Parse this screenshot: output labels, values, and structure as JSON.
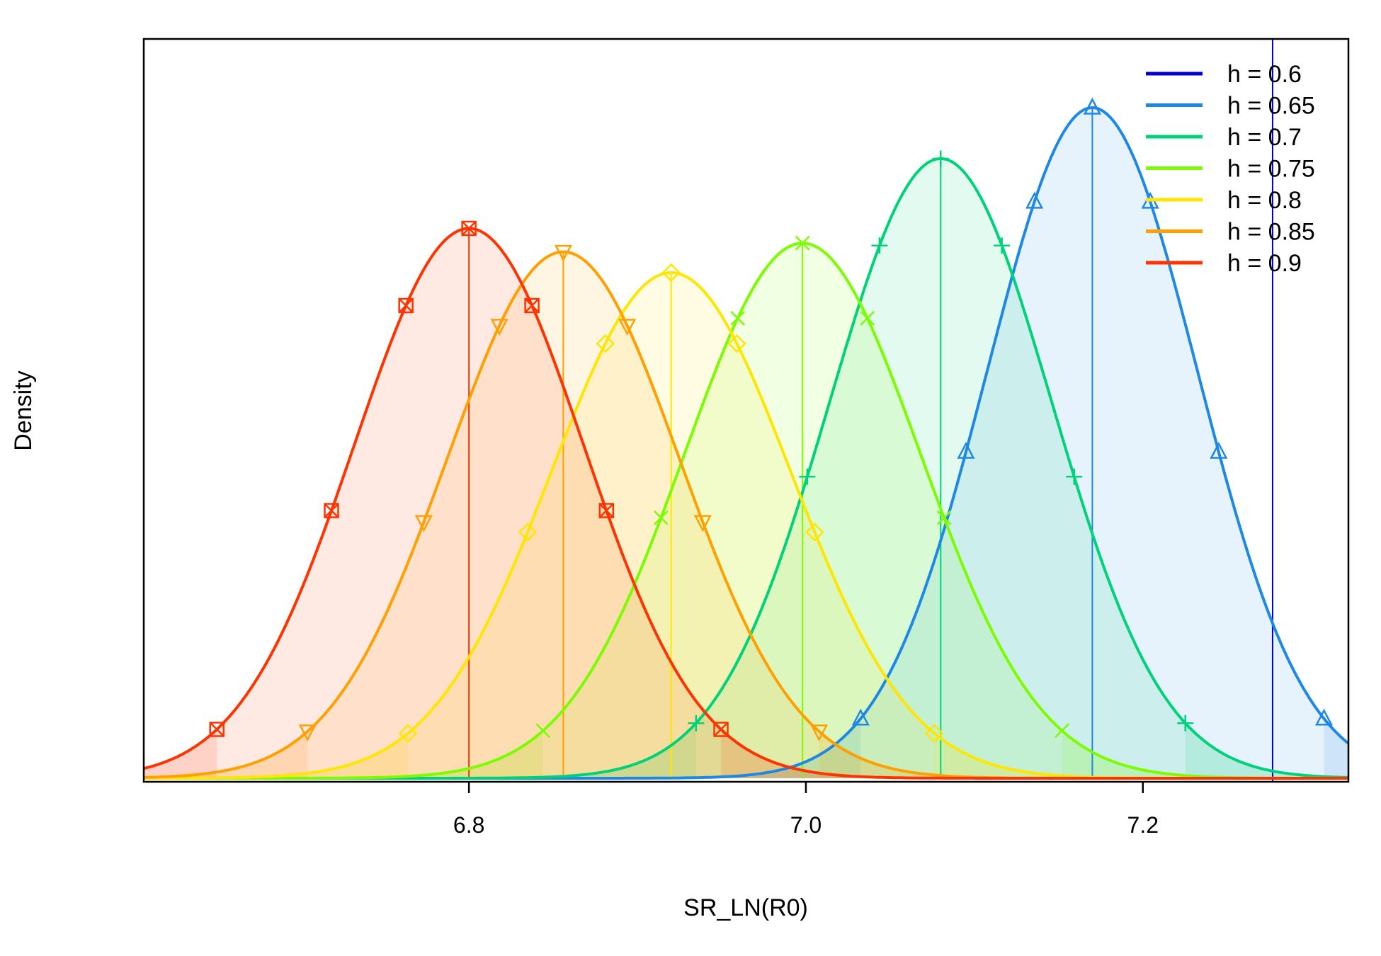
{
  "chart_data": {
    "type": "area",
    "xlabel": "SR_LN(R0)",
    "ylabel": "Density",
    "xlim": [
      6.607,
      7.322
    ],
    "x_ticks": [
      "6.8",
      "7.0",
      "7.2"
    ],
    "x_tick_values": [
      6.8,
      7.0,
      7.2
    ],
    "grid": false,
    "legend_position": "top-right",
    "series": [
      {
        "name": "h = 0.6",
        "color": "#0000CC",
        "type": "vline",
        "x": 7.277
      },
      {
        "name": "h = 0.65",
        "color": "#1E88E5",
        "mean": 7.17,
        "sd": 0.0625,
        "peak": 1.0,
        "marker": "triangle-up"
      },
      {
        "name": "h = 0.7",
        "color": "#00D27A",
        "mean": 7.08,
        "sd": 0.066,
        "peak": 0.924,
        "marker": "plus"
      },
      {
        "name": "h = 0.75",
        "color": "#7CFC00",
        "mean": 6.998,
        "sd": 0.07,
        "peak": 0.798,
        "marker": "cross"
      },
      {
        "name": "h = 0.8",
        "color": "#FFE600",
        "mean": 6.92,
        "sd": 0.071,
        "peak": 0.754,
        "marker": "diamond"
      },
      {
        "name": "h = 0.85",
        "color": "#FFA000",
        "mean": 6.856,
        "sd": 0.069,
        "peak": 0.785,
        "marker": "triangle-down"
      },
      {
        "name": "h = 0.9",
        "color": "#FF3300",
        "mean": 6.8,
        "sd": 0.068,
        "peak": 0.82,
        "marker": "square-cross"
      }
    ]
  }
}
